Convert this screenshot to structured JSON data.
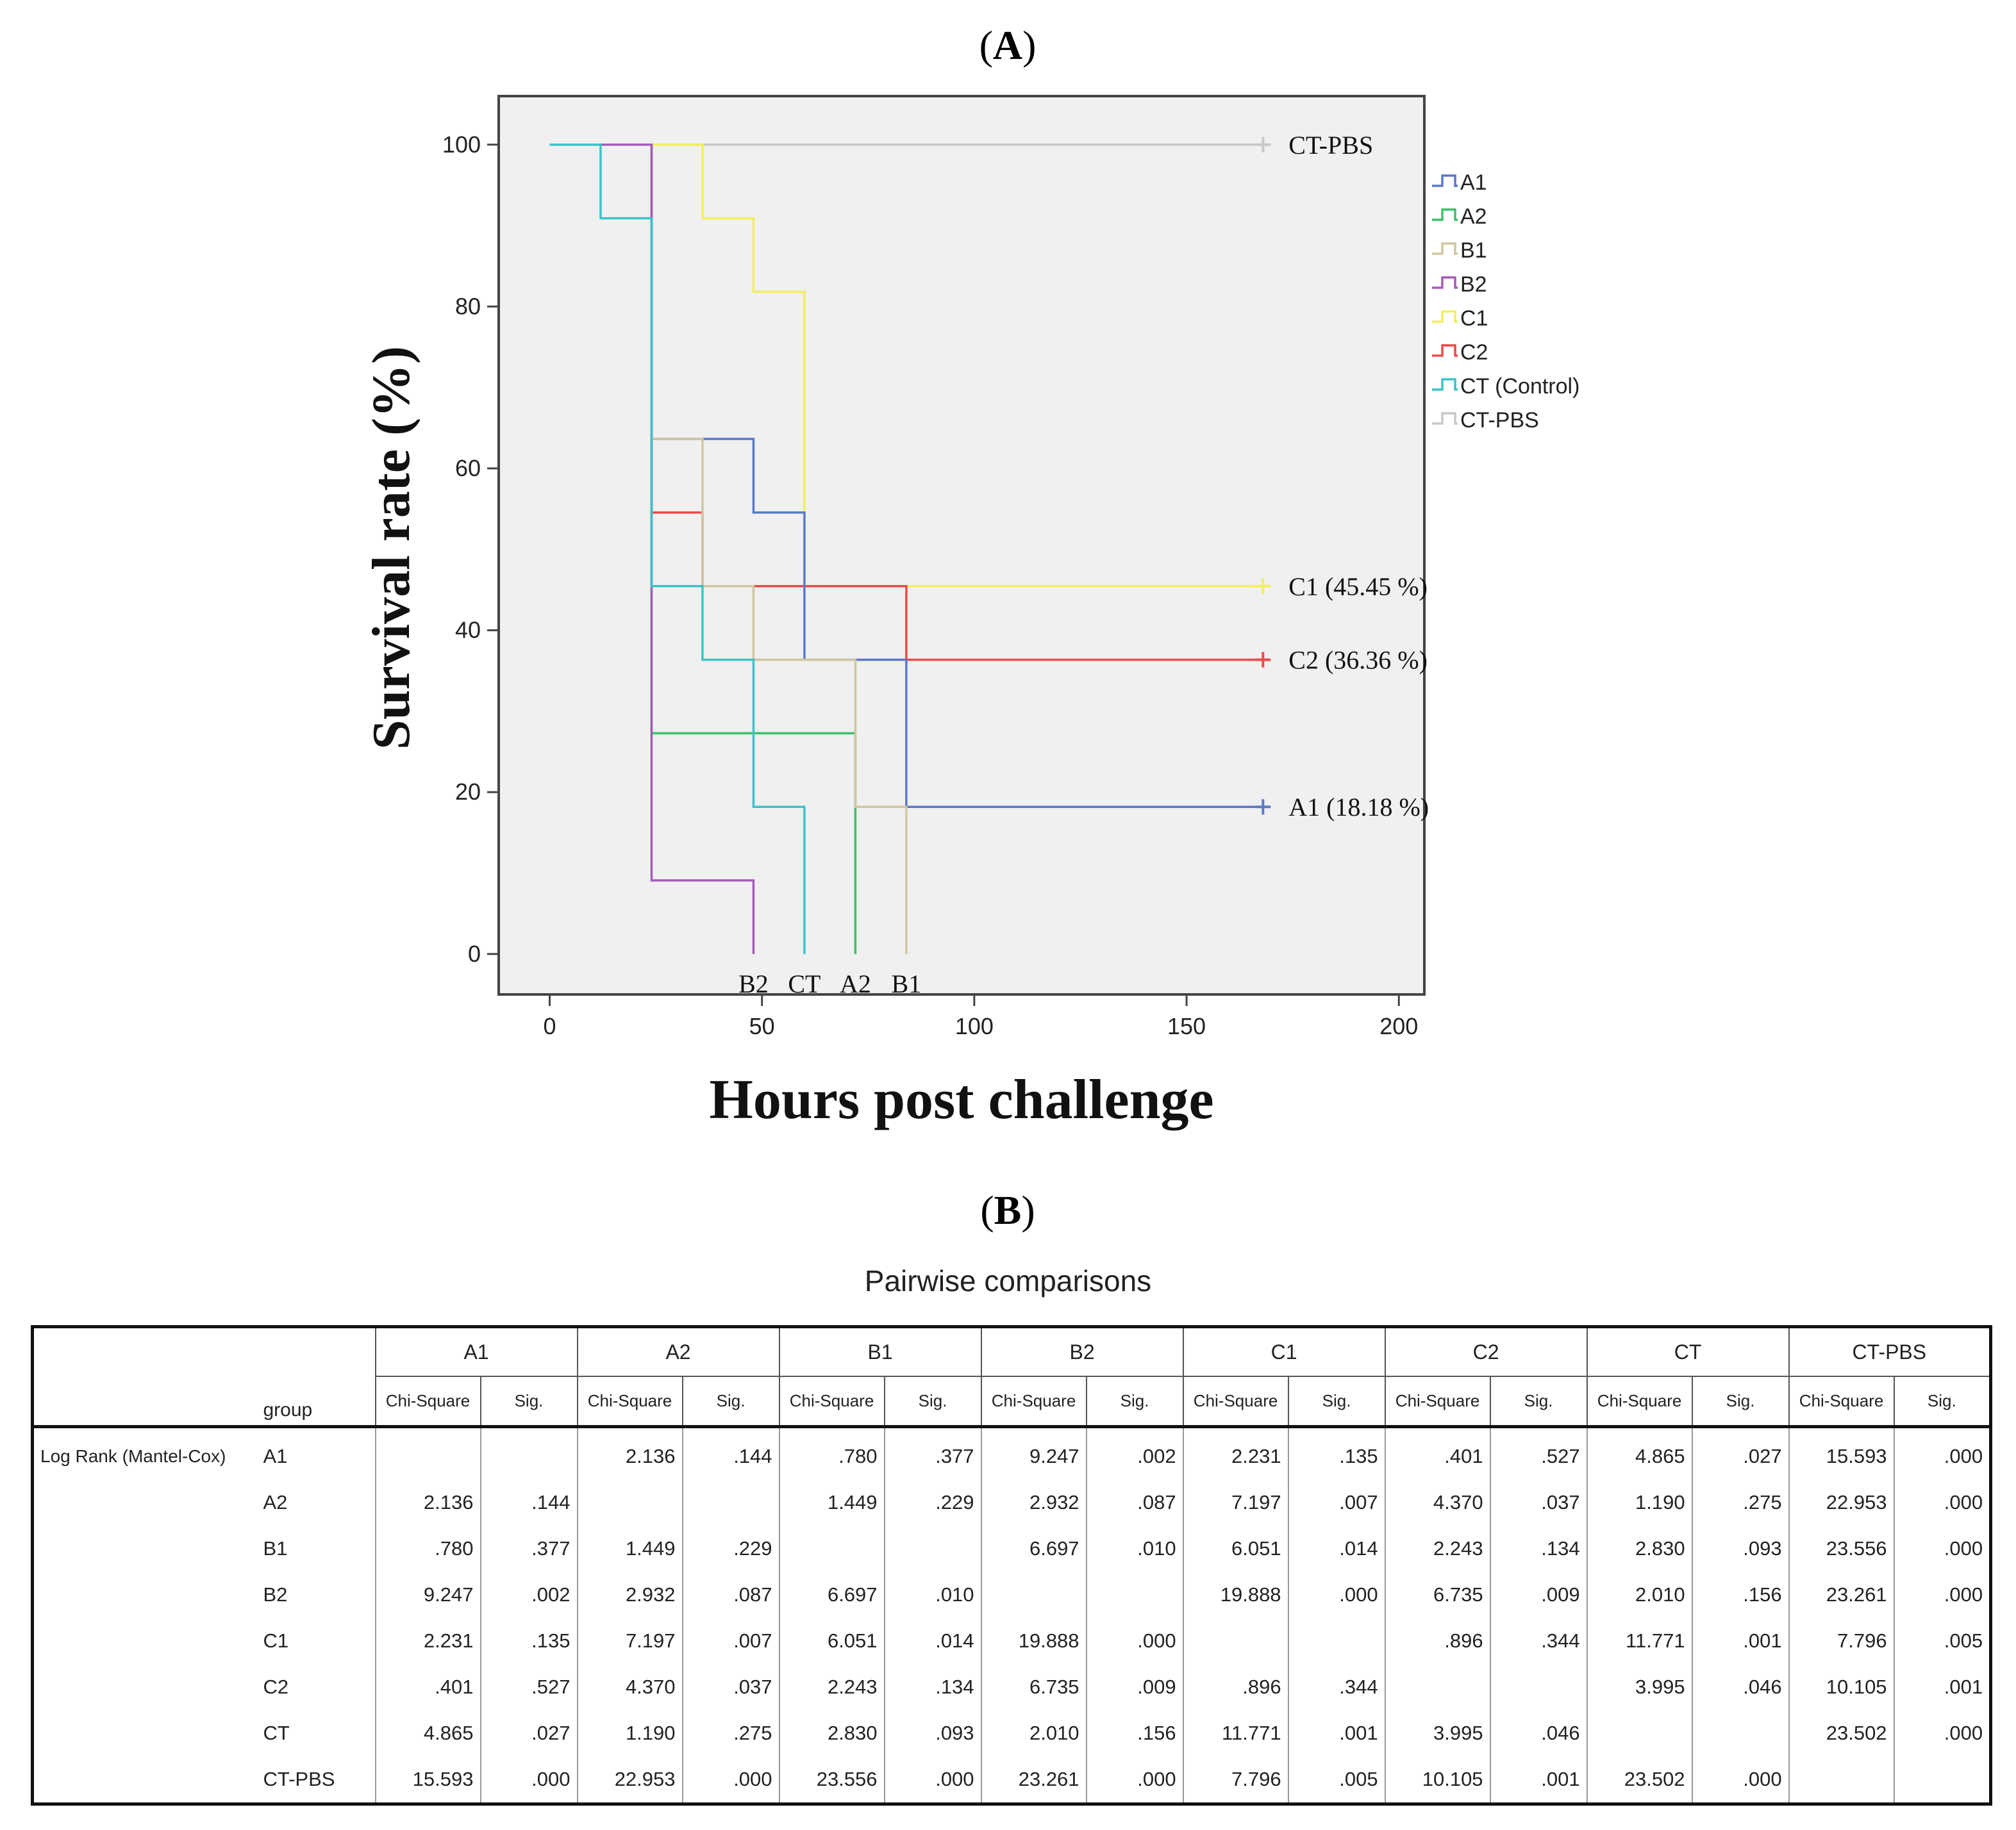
{
  "panel_a_label": "A",
  "panel_b_label": "B",
  "chart_data": {
    "type": "line",
    "step": true,
    "xlabel": "Hours post challenge",
    "ylabel": "Survival rate (%)",
    "xlim": [
      -12,
      206
    ],
    "ylim": [
      -5,
      106
    ],
    "xticks": [
      0,
      50,
      100,
      150,
      200
    ],
    "yticks": [
      0,
      20,
      40,
      60,
      80,
      100
    ],
    "series": [
      {
        "name": "CT-PBS",
        "color": "#c8c8c8",
        "x": [
          0,
          168
        ],
        "y": [
          100,
          100
        ],
        "censor": true,
        "label": "CT-PBS"
      },
      {
        "name": "C1",
        "color": "#f2ee60",
        "x": [
          0,
          36,
          48,
          60,
          168
        ],
        "y": [
          100,
          90.91,
          81.82,
          45.45,
          45.45
        ],
        "censor": true,
        "label": "C1 (45.45 %)"
      },
      {
        "name": "C2",
        "color": "#f04848",
        "x": [
          0,
          24,
          36,
          84,
          168
        ],
        "y": [
          100,
          54.55,
          45.45,
          36.36,
          36.36
        ],
        "censor": true,
        "label": "C2 (36.36 %)"
      },
      {
        "name": "A1",
        "color": "#5b79c8",
        "x": [
          0,
          24,
          48,
          60,
          84,
          168
        ],
        "y": [
          100,
          63.64,
          54.55,
          36.36,
          18.18,
          18.18
        ],
        "censor": true,
        "label": "A1 (18.18 %)"
      },
      {
        "name": "A2",
        "color": "#3fbe6a",
        "x": [
          0,
          24,
          72
        ],
        "y": [
          100,
          27.27,
          0
        ],
        "censor": false,
        "label": "A2"
      },
      {
        "name": "B1",
        "color": "#cfc7a0",
        "x": [
          0,
          24,
          36,
          48,
          72,
          84
        ],
        "y": [
          100,
          63.64,
          45.45,
          36.36,
          18.18,
          0
        ],
        "censor": false,
        "label": "B1"
      },
      {
        "name": "B2",
        "color": "#a55cb8",
        "x": [
          0,
          24,
          48
        ],
        "y": [
          100,
          9.09,
          0
        ],
        "censor": false,
        "label": "B2"
      },
      {
        "name": "CT (Control)",
        "color": "#3cc2c8",
        "x": [
          0,
          12,
          24,
          36,
          48,
          60
        ],
        "y": [
          100,
          90.91,
          45.45,
          36.36,
          18.18,
          0
        ],
        "censor": false,
        "label": "CT"
      }
    ],
    "legend": [
      "A1",
      "A2",
      "B1",
      "B2",
      "C1",
      "C2",
      "CT (Control)",
      "CT-PBS"
    ],
    "legend_position": "right",
    "legend_colors": [
      "#5b79c8",
      "#3fbe6a",
      "#cfc7a0",
      "#a55cb8",
      "#f2ee60",
      "#f04848",
      "#3cc2c8",
      "#c8c8c8"
    ]
  },
  "table": {
    "title": "Pairwise comparisons",
    "group_header": "group",
    "row_header": "Log Rank (Mantel-Cox)",
    "groups": [
      "A1",
      "A2",
      "B1",
      "B2",
      "C1",
      "C2",
      "CT",
      "CT-PBS"
    ],
    "sub_headers": [
      "Chi-Square",
      "Sig."
    ],
    "rows": [
      {
        "group": "A1",
        "cells": [
          "",
          "",
          "2.136",
          ".144",
          ".780",
          ".377",
          "9.247",
          ".002",
          "2.231",
          ".135",
          ".401",
          ".527",
          "4.865",
          ".027",
          "15.593",
          ".000"
        ]
      },
      {
        "group": "A2",
        "cells": [
          "2.136",
          ".144",
          "",
          "",
          "1.449",
          ".229",
          "2.932",
          ".087",
          "7.197",
          ".007",
          "4.370",
          ".037",
          "1.190",
          ".275",
          "22.953",
          ".000"
        ]
      },
      {
        "group": "B1",
        "cells": [
          ".780",
          ".377",
          "1.449",
          ".229",
          "",
          "",
          "6.697",
          ".010",
          "6.051",
          ".014",
          "2.243",
          ".134",
          "2.830",
          ".093",
          "23.556",
          ".000"
        ]
      },
      {
        "group": "B2",
        "cells": [
          "9.247",
          ".002",
          "2.932",
          ".087",
          "6.697",
          ".010",
          "",
          "",
          "19.888",
          ".000",
          "6.735",
          ".009",
          "2.010",
          ".156",
          "23.261",
          ".000"
        ]
      },
      {
        "group": "C1",
        "cells": [
          "2.231",
          ".135",
          "7.197",
          ".007",
          "6.051",
          ".014",
          "19.888",
          ".000",
          "",
          "",
          ".896",
          ".344",
          "11.771",
          ".001",
          "7.796",
          ".005"
        ]
      },
      {
        "group": "C2",
        "cells": [
          ".401",
          ".527",
          "4.370",
          ".037",
          "2.243",
          ".134",
          "6.735",
          ".009",
          ".896",
          ".344",
          "",
          "",
          "3.995",
          ".046",
          "10.105",
          ".001"
        ]
      },
      {
        "group": "CT",
        "cells": [
          "4.865",
          ".027",
          "1.190",
          ".275",
          "2.830",
          ".093",
          "2.010",
          ".156",
          "11.771",
          ".001",
          "3.995",
          ".046",
          "",
          "",
          "23.502",
          ".000"
        ]
      },
      {
        "group": "CT-PBS",
        "cells": [
          "15.593",
          ".000",
          "22.953",
          ".000",
          "23.556",
          ".000",
          "23.261",
          ".000",
          "7.796",
          ".005",
          "10.105",
          ".001",
          "23.502",
          ".000",
          "",
          ""
        ]
      }
    ]
  }
}
